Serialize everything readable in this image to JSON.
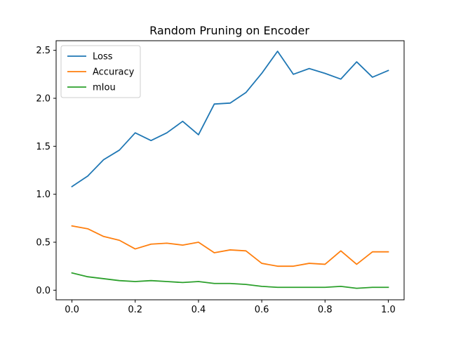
{
  "chart_data": {
    "type": "line",
    "title": "Random Pruning on Encoder",
    "xlabel": "",
    "ylabel": "",
    "xlim": [
      -0.05,
      1.05
    ],
    "ylim": [
      -0.1,
      2.6
    ],
    "x_ticks": [
      0.0,
      0.2,
      0.4,
      0.6,
      0.8,
      1.0
    ],
    "x_tick_labels": [
      "0.0",
      "0.2",
      "0.4",
      "0.6",
      "0.8",
      "1.0"
    ],
    "y_ticks": [
      0.0,
      0.5,
      1.0,
      1.5,
      2.0,
      2.5
    ],
    "y_tick_labels": [
      "0.0",
      "0.5",
      "1.0",
      "1.5",
      "2.0",
      "2.5"
    ],
    "grid": false,
    "legend_position": "top-left",
    "x": [
      0.0,
      0.05,
      0.1,
      0.15,
      0.2,
      0.25,
      0.3,
      0.35,
      0.4,
      0.45,
      0.5,
      0.55,
      0.6,
      0.65,
      0.7,
      0.75,
      0.8,
      0.85,
      0.9,
      0.95,
      1.0
    ],
    "series": [
      {
        "name": "Loss",
        "color": "#1f77b4",
        "values": [
          1.08,
          1.19,
          1.36,
          1.46,
          1.64,
          1.56,
          1.64,
          1.76,
          1.62,
          1.94,
          1.95,
          2.06,
          2.26,
          2.49,
          2.25,
          2.31,
          2.26,
          2.2,
          2.38,
          2.22,
          2.29
        ]
      },
      {
        "name": "Accuracy",
        "color": "#ff7f0e",
        "values": [
          0.67,
          0.64,
          0.56,
          0.52,
          0.43,
          0.48,
          0.49,
          0.47,
          0.5,
          0.39,
          0.42,
          0.41,
          0.28,
          0.25,
          0.25,
          0.28,
          0.27,
          0.41,
          0.27,
          0.4,
          0.4
        ]
      },
      {
        "name": "mIou",
        "color": "#2ca02c",
        "values": [
          0.18,
          0.14,
          0.12,
          0.1,
          0.09,
          0.1,
          0.09,
          0.08,
          0.09,
          0.07,
          0.07,
          0.06,
          0.04,
          0.03,
          0.03,
          0.03,
          0.03,
          0.04,
          0.02,
          0.03,
          0.03
        ]
      }
    ]
  }
}
